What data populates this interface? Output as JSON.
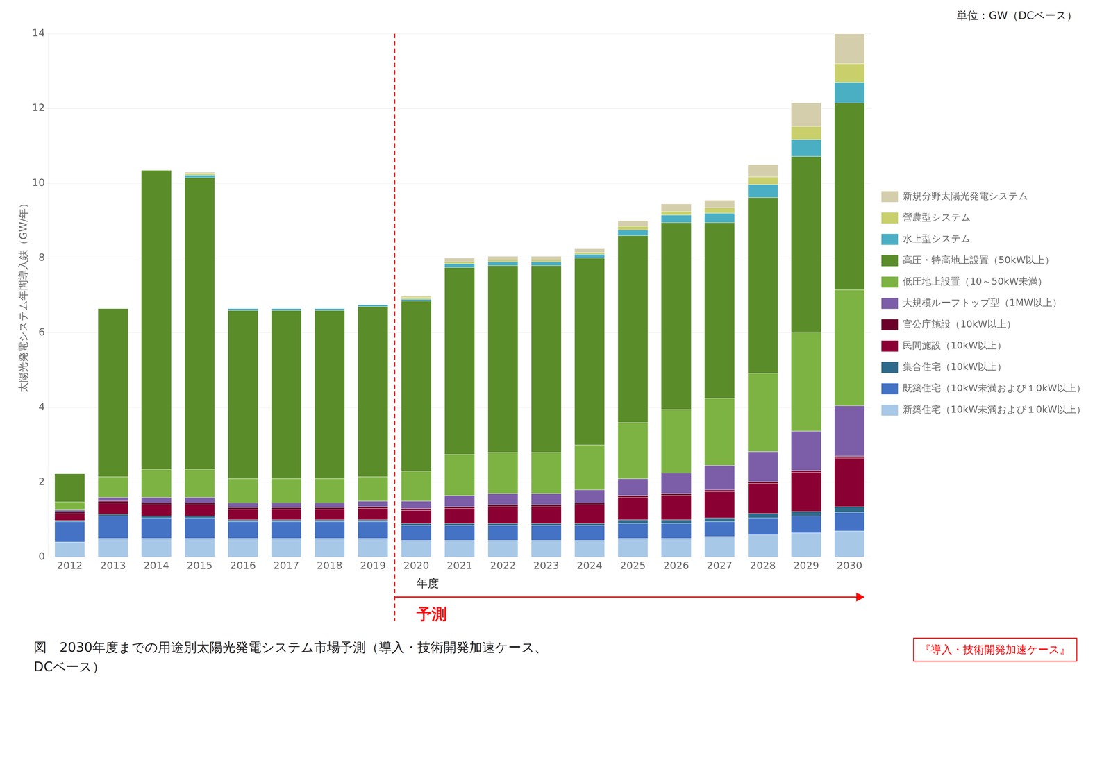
{
  "chart_data": {
    "type": "bar",
    "stacked": true,
    "categories": [
      "2012",
      "2013",
      "2014",
      "2015",
      "2016",
      "2017",
      "2018",
      "2019",
      "2020",
      "2021",
      "2022",
      "2023",
      "2024",
      "2025",
      "2026",
      "2027",
      "2028",
      "2029",
      "2030"
    ],
    "series": [
      {
        "name": "新築住宅（10kW未満および１0kW以上）",
        "color": "#A8C8E8",
        "values": [
          0.4,
          0.5,
          0.5,
          0.5,
          0.5,
          0.5,
          0.5,
          0.5,
          0.45,
          0.45,
          0.45,
          0.45,
          0.45,
          0.5,
          0.5,
          0.55,
          0.6,
          0.65,
          0.7
        ]
      },
      {
        "name": "既築住宅（10kW未満および１0kW以上）",
        "color": "#4472C4",
        "values": [
          0.55,
          0.6,
          0.55,
          0.55,
          0.45,
          0.45,
          0.45,
          0.45,
          0.4,
          0.4,
          0.4,
          0.4,
          0.4,
          0.4,
          0.4,
          0.4,
          0.45,
          0.45,
          0.5
        ]
      },
      {
        "name": "集合住宅（10kW以上）",
        "color": "#2E6B8A",
        "values": [
          0.03,
          0.05,
          0.05,
          0.05,
          0.05,
          0.05,
          0.05,
          0.05,
          0.05,
          0.05,
          0.05,
          0.05,
          0.05,
          0.1,
          0.1,
          0.1,
          0.12,
          0.12,
          0.15
        ]
      },
      {
        "name": "民間施設（10kW以上）",
        "color": "#8B0033",
        "values": [
          0.18,
          0.3,
          0.3,
          0.3,
          0.28,
          0.28,
          0.28,
          0.3,
          0.35,
          0.4,
          0.45,
          0.45,
          0.5,
          0.6,
          0.65,
          0.7,
          0.8,
          1.05,
          1.3
        ]
      },
      {
        "name": "官公庁施設（10kW以上）",
        "color": "#6B002A",
        "values": [
          0.05,
          0.05,
          0.05,
          0.05,
          0.05,
          0.05,
          0.05,
          0.05,
          0.05,
          0.05,
          0.05,
          0.05,
          0.05,
          0.05,
          0.05,
          0.05,
          0.05,
          0.05,
          0.05
        ]
      },
      {
        "name": "大規模ルーフトップ型（1MW以上）",
        "color": "#7B5EA7",
        "values": [
          0.05,
          0.1,
          0.15,
          0.15,
          0.12,
          0.12,
          0.12,
          0.15,
          0.2,
          0.3,
          0.3,
          0.3,
          0.35,
          0.45,
          0.55,
          0.65,
          0.8,
          1.05,
          1.35
        ]
      },
      {
        "name": "低圧地上設置（10～50kW未満）",
        "color": "#7DB343",
        "values": [
          0.22,
          0.55,
          0.75,
          0.75,
          0.65,
          0.65,
          0.65,
          0.65,
          0.8,
          1.1,
          1.1,
          1.1,
          1.2,
          1.5,
          1.7,
          1.8,
          2.1,
          2.65,
          3.1
        ]
      },
      {
        "name": "高圧・特高地上設置（50kW以上）",
        "color": "#5B8C2A",
        "values": [
          0.75,
          4.5,
          8.0,
          7.8,
          4.5,
          4.5,
          4.5,
          4.55,
          4.55,
          5.0,
          5.0,
          5.0,
          5.0,
          5.0,
          5.0,
          4.7,
          4.7,
          4.7,
          5.0
        ]
      },
      {
        "name": "水上型システム",
        "color": "#4BAFC4",
        "values": [
          0.0,
          0.0,
          0.0,
          0.07,
          0.05,
          0.05,
          0.05,
          0.05,
          0.05,
          0.1,
          0.1,
          0.1,
          0.1,
          0.15,
          0.2,
          0.25,
          0.35,
          0.45,
          0.55
        ]
      },
      {
        "name": "營農型システム",
        "color": "#C8CF6B",
        "values": [
          0.0,
          0.0,
          0.0,
          0.05,
          0.0,
          0.0,
          0.0,
          0.0,
          0.05,
          0.05,
          0.05,
          0.05,
          0.05,
          0.1,
          0.1,
          0.15,
          0.2,
          0.35,
          0.5
        ]
      },
      {
        "name": "新規分野太陽光発電システム",
        "color": "#D4CEAC",
        "values": [
          0.0,
          0.0,
          0.0,
          0.03,
          0.0,
          0.0,
          0.0,
          0.0,
          0.05,
          0.1,
          0.1,
          0.1,
          0.1,
          0.15,
          0.2,
          0.2,
          0.33,
          0.63,
          0.8
        ]
      }
    ],
    "y_label": "太陽光発電システム年間導入鈇（GW/年）",
    "x_label": "年度",
    "ylim": [
      0,
      14
    ],
    "yticks": [
      0,
      2,
      4,
      6,
      8,
      10,
      12,
      14
    ],
    "grid": true,
    "legend": "right",
    "unit_label": "単位：GW（DCベース）",
    "forecast": {
      "text": "予測",
      "x": "2020",
      "color": "red"
    },
    "case_label": {
      "text": "『導入・技術開発加速ケース』",
      "color": "red"
    },
    "caption": [
      "図　2030年度までの用途別太陽光発電システム市場予測（導入・技術開発加速ケース、",
      "DCベース）"
    ]
  }
}
